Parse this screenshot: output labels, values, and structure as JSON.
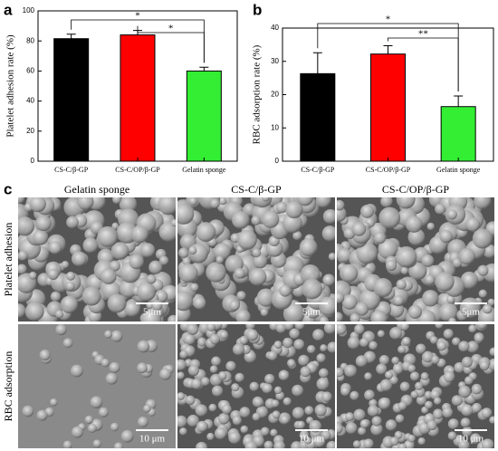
{
  "chart_data": [
    {
      "type": "bar",
      "panel_label": "a",
      "ylabel": "Platelet adhesion rate (%)",
      "categories": [
        "CS-C/β-GP",
        "CS-C/OP/β-GP",
        "Gelatin sponge"
      ],
      "values": [
        81.5,
        84,
        60
      ],
      "errors": [
        3,
        3,
        2.5
      ],
      "colors": [
        "#000000",
        "#ff0000",
        "#33ee33"
      ],
      "ylim": [
        0,
        100
      ],
      "yticks": [
        0,
        20,
        40,
        60,
        80,
        100
      ],
      "annotations": [
        {
          "text": "*",
          "bars": [
            0,
            2
          ]
        },
        {
          "text": "*",
          "bars": [
            1,
            2
          ]
        }
      ]
    },
    {
      "type": "bar",
      "panel_label": "b",
      "ylabel": "RBC adsorption rate (%)",
      "categories": [
        "CS-C/β-GP",
        "CS-C/OP/β-GP",
        "Gelatin sponge"
      ],
      "values": [
        26.3,
        32.2,
        16.4
      ],
      "errors": [
        6.3,
        2.5,
        3.2
      ],
      "colors": [
        "#000000",
        "#ff0000",
        "#33ee33"
      ],
      "ylim": [
        0,
        40
      ],
      "yticks": [
        0,
        10,
        20,
        30,
        40
      ],
      "annotations": [
        {
          "text": "*",
          "bars": [
            0,
            2
          ]
        },
        {
          "text": "**",
          "bars": [
            1,
            2
          ]
        }
      ]
    }
  ],
  "figure": {
    "panel_label": "c",
    "columns": [
      "Gelatin sponge",
      "CS-C/β-GP",
      "CS-C/OP/β-GP"
    ],
    "rows": [
      "Platelet adhesion",
      "RBC adsorption"
    ],
    "scale_bars": [
      [
        "5μm",
        "5μm",
        "5μm"
      ],
      [
        "10 μm",
        "10 μm",
        "10 μm"
      ]
    ]
  }
}
